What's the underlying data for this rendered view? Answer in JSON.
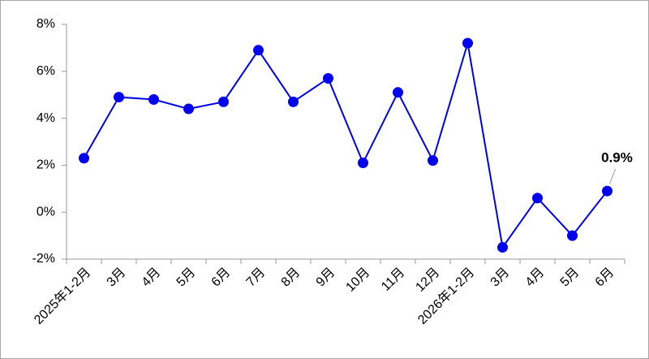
{
  "chart_data": {
    "type": "line",
    "categories": [
      "2025年1-2月",
      "3月",
      "4月",
      "5月",
      "6月",
      "7月",
      "8月",
      "9月",
      "10月",
      "11月",
      "12月",
      "2026年1-2月",
      "3月",
      "4月",
      "5月",
      "6月"
    ],
    "series": [
      {
        "color": "#0000ee",
        "values": [
          2.3,
          4.9,
          4.8,
          4.4,
          4.7,
          6.9,
          4.7,
          5.7,
          2.1,
          5.1,
          2.2,
          7.2,
          -1.5,
          0.6,
          -1.0,
          0.9
        ],
        "value_labels": [
          null,
          null,
          null,
          null,
          null,
          null,
          null,
          null,
          null,
          null,
          null,
          null,
          null,
          null,
          null,
          "0.9%"
        ]
      }
    ],
    "ylim": [
      -2,
      8
    ],
    "yticks": [
      {
        "value": -2,
        "label": "-2%"
      },
      {
        "value": 0,
        "label": "0%"
      },
      {
        "value": 2,
        "label": "2%"
      },
      {
        "value": 4,
        "label": "4%"
      },
      {
        "value": 6,
        "label": "6%"
      },
      {
        "value": 8,
        "label": "8%"
      }
    ],
    "grid": false
  }
}
